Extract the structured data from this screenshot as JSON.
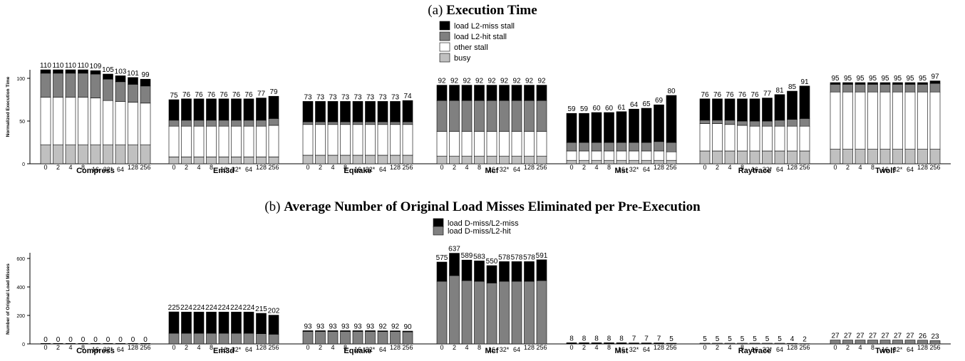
{
  "charts": {
    "a": {
      "title_prefix": "(a)",
      "title_main": "Execution Time",
      "ylabel": "Normalized Execution Time",
      "legend": [
        "load L2-miss stall",
        "load L2-hit stall",
        "other stall",
        "busy"
      ]
    },
    "b": {
      "title_prefix": "(b)",
      "title_main": "Average Number of Original Load Misses Eliminated per Pre-Execution",
      "ylabel": "Number of Original Load Misses",
      "legend": [
        "load D-miss/L2-miss",
        "load D-miss/L2-hit"
      ]
    }
  },
  "colors": {
    "l2miss": "#000000",
    "l2hit": "#808080",
    "other": "#ffffff",
    "busy": "#c0c0c0"
  },
  "chart_data": [
    {
      "type": "bar",
      "stacked": true,
      "title": "(a) Execution Time",
      "ylabel": "Normalized Execution Time",
      "ylim": [
        0,
        110
      ],
      "yticks": [
        0,
        50,
        100
      ],
      "groups": [
        "Compress",
        "Em3d",
        "Equake",
        "Mcf",
        "Mst",
        "Raytrace",
        "Twolf"
      ],
      "categories": [
        "0",
        "2",
        "4",
        "8",
        "16",
        "32*",
        "64",
        "128",
        "256"
      ],
      "stack_order": [
        "busy",
        "other stall",
        "load L2-hit stall",
        "load L2-miss stall"
      ],
      "series": [
        {
          "group": "Compress",
          "totals": [
            110,
            110,
            110,
            110,
            109,
            105,
            103,
            101,
            99
          ],
          "busy": [
            22,
            22,
            22,
            22,
            22,
            22,
            22,
            22,
            22
          ],
          "other": [
            56,
            56,
            56,
            56,
            55,
            52,
            51,
            50,
            49
          ],
          "l2hit": [
            28,
            28,
            28,
            28,
            28,
            25,
            23,
            21,
            20
          ]
        },
        {
          "group": "Em3d",
          "totals": [
            75,
            76,
            76,
            76,
            76,
            76,
            76,
            77,
            79
          ],
          "busy": [
            8,
            8,
            8,
            8,
            8,
            8,
            8,
            8,
            8
          ],
          "other": [
            36,
            36,
            36,
            36,
            36,
            36,
            36,
            36,
            37
          ],
          "l2hit": [
            7,
            7,
            7,
            7,
            7,
            7,
            7,
            7,
            8
          ]
        },
        {
          "group": "Equake",
          "totals": [
            73,
            73,
            73,
            73,
            73,
            73,
            73,
            73,
            74
          ],
          "busy": [
            10,
            10,
            10,
            10,
            10,
            10,
            10,
            10,
            10
          ],
          "other": [
            36,
            36,
            36,
            36,
            36,
            36,
            36,
            36,
            36
          ],
          "l2hit": [
            3,
            3,
            3,
            3,
            3,
            3,
            3,
            3,
            3
          ]
        },
        {
          "group": "Mcf",
          "totals": [
            92,
            92,
            92,
            92,
            92,
            92,
            92,
            92,
            92
          ],
          "busy": [
            9,
            9,
            9,
            9,
            9,
            9,
            9,
            9,
            9
          ],
          "other": [
            29,
            29,
            29,
            29,
            29,
            29,
            29,
            29,
            29
          ],
          "l2hit": [
            36,
            36,
            36,
            36,
            36,
            36,
            36,
            36,
            36
          ]
        },
        {
          "group": "Mst",
          "totals": [
            59,
            59,
            60,
            60,
            61,
            64,
            65,
            69,
            80
          ],
          "busy": [
            4,
            4,
            4,
            4,
            4,
            4,
            4,
            4,
            4
          ],
          "other": [
            11,
            11,
            11,
            11,
            11,
            11,
            11,
            11,
            10
          ],
          "l2hit": [
            10,
            10,
            10,
            10,
            10,
            10,
            10,
            11,
            11
          ]
        },
        {
          "group": "Raytrace",
          "totals": [
            76,
            76,
            76,
            76,
            76,
            77,
            81,
            85,
            91
          ],
          "busy": [
            15,
            15,
            15,
            15,
            15,
            15,
            15,
            15,
            15
          ],
          "other": [
            32,
            32,
            31,
            30,
            29,
            29,
            29,
            29,
            29
          ],
          "l2hit": [
            4,
            4,
            5,
            5,
            6,
            6,
            7,
            8,
            9
          ]
        },
        {
          "group": "Twolf",
          "totals": [
            95,
            95,
            95,
            95,
            95,
            95,
            95,
            95,
            97
          ],
          "busy": [
            17,
            17,
            17,
            17,
            17,
            17,
            17,
            17,
            17
          ],
          "other": [
            67,
            67,
            67,
            67,
            67,
            67,
            67,
            67,
            67
          ],
          "l2hit": [
            9,
            9,
            9,
            9,
            9,
            9,
            9,
            9,
            10
          ]
        }
      ]
    },
    {
      "type": "bar",
      "stacked": true,
      "title": "(b) Average Number of Original Load Misses Eliminated per Pre-Execution",
      "ylabel": "Number of Original Load Misses",
      "ylim": [
        0,
        640
      ],
      "yticks": [
        0,
        200,
        400,
        600
      ],
      "groups": [
        "Compress",
        "Em3d",
        "Equake",
        "Mcf",
        "Mst",
        "Raytrace",
        "Twolf"
      ],
      "categories": [
        "0",
        "2",
        "4",
        "8",
        "16",
        "32*",
        "64",
        "128",
        "256"
      ],
      "stack_order": [
        "load D-miss/L2-hit",
        "load D-miss/L2-miss"
      ],
      "series": [
        {
          "group": "Compress",
          "totals": [
            0,
            0,
            0,
            0,
            0,
            0,
            0,
            0,
            0
          ],
          "l2hit": [
            0,
            0,
            0,
            0,
            0,
            0,
            0,
            0,
            0
          ]
        },
        {
          "group": "Em3d",
          "totals": [
            225,
            224,
            224,
            224,
            224,
            224,
            224,
            215,
            202
          ],
          "l2hit": [
            75,
            75,
            75,
            75,
            75,
            75,
            75,
            72,
            68
          ]
        },
        {
          "group": "Equake",
          "totals": [
            93,
            93,
            93,
            93,
            93,
            93,
            92,
            92,
            90
          ],
          "l2hit": [
            88,
            88,
            88,
            88,
            88,
            88,
            87,
            87,
            85
          ]
        },
        {
          "group": "Mcf",
          "totals": [
            575,
            637,
            589,
            583,
            550,
            578,
            578,
            578,
            591
          ],
          "l2hit": [
            440,
            480,
            445,
            440,
            428,
            440,
            440,
            440,
            445
          ]
        },
        {
          "group": "Mst",
          "totals": [
            8,
            8,
            8,
            8,
            8,
            7,
            7,
            7,
            5
          ],
          "l2hit": [
            2,
            2,
            2,
            2,
            2,
            2,
            2,
            2,
            1
          ]
        },
        {
          "group": "Raytrace",
          "totals": [
            5,
            5,
            5,
            5,
            5,
            5,
            5,
            4,
            2
          ],
          "l2hit": [
            5,
            5,
            5,
            5,
            5,
            5,
            5,
            4,
            2
          ]
        },
        {
          "group": "Twolf",
          "totals": [
            27,
            27,
            27,
            27,
            27,
            27,
            27,
            26,
            23
          ],
          "l2hit": [
            27,
            27,
            27,
            27,
            27,
            27,
            27,
            26,
            23
          ]
        }
      ]
    }
  ]
}
